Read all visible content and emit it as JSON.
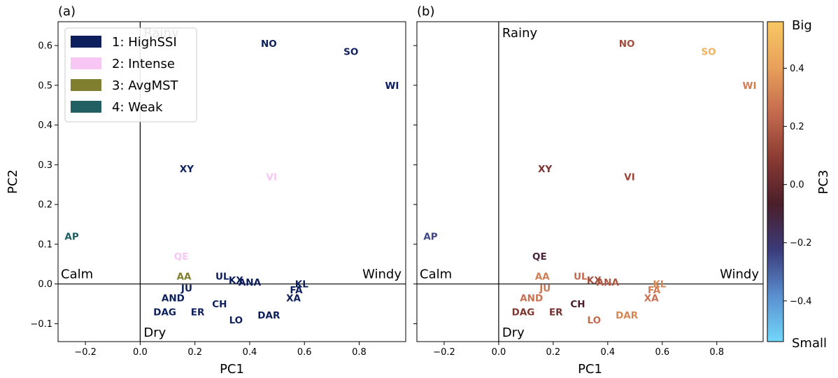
{
  "chart_data": [
    {
      "panel_label": "(a)",
      "type": "scatter",
      "xlabel": "PC1",
      "ylabel": "PC2",
      "xlim": [
        -0.3,
        0.97
      ],
      "ylim": [
        -0.145,
        0.66
      ],
      "xticks": [
        "-0.2",
        "0.0",
        "0.2",
        "0.4",
        "0.6",
        "0.8"
      ],
      "yticks": [
        "-0.1",
        "0.0",
        "0.1",
        "0.2",
        "0.3",
        "0.4",
        "0.5",
        "0.6"
      ],
      "quadrant_labels": {
        "top": "Rainy",
        "bottom": "Dry",
        "left": "Calm",
        "right": "Windy"
      },
      "legend": {
        "position": "top-left",
        "entries": [
          {
            "label": "1: HighSSI",
            "color": "#0d1f5c"
          },
          {
            "label": "2: Intense",
            "color": "#f7c6f5"
          },
          {
            "label": "3: AvgMST",
            "color": "#807f2f"
          },
          {
            "label": "4: Weak",
            "color": "#225f63"
          }
        ]
      },
      "points": [
        {
          "label": "NO",
          "x": 0.47,
          "y": 0.605,
          "cluster": 1
        },
        {
          "label": "SO",
          "x": 0.77,
          "y": 0.585,
          "cluster": 1
        },
        {
          "label": "WI",
          "x": 0.92,
          "y": 0.5,
          "cluster": 1
        },
        {
          "label": "XY",
          "x": 0.17,
          "y": 0.29,
          "cluster": 1
        },
        {
          "label": "VI",
          "x": 0.48,
          "y": 0.27,
          "cluster": 2
        },
        {
          "label": "AP",
          "x": -0.25,
          "y": 0.12,
          "cluster": 4
        },
        {
          "label": "QE",
          "x": 0.15,
          "y": 0.07,
          "cluster": 2
        },
        {
          "label": "AA",
          "x": 0.16,
          "y": 0.02,
          "cluster": 3
        },
        {
          "label": "UL",
          "x": 0.3,
          "y": 0.02,
          "cluster": 1
        },
        {
          "label": "KX",
          "x": 0.35,
          "y": 0.01,
          "cluster": 1
        },
        {
          "label": "ANA",
          "x": 0.4,
          "y": 0.005,
          "cluster": 1
        },
        {
          "label": "KL",
          "x": 0.59,
          "y": 0.0,
          "cluster": 1
        },
        {
          "label": "JU",
          "x": 0.17,
          "y": -0.01,
          "cluster": 1
        },
        {
          "label": "FA",
          "x": 0.57,
          "y": -0.015,
          "cluster": 1
        },
        {
          "label": "XA",
          "x": 0.56,
          "y": -0.035,
          "cluster": 1
        },
        {
          "label": "AND",
          "x": 0.12,
          "y": -0.035,
          "cluster": 1
        },
        {
          "label": "CH",
          "x": 0.29,
          "y": -0.05,
          "cluster": 1
        },
        {
          "label": "DAG",
          "x": 0.09,
          "y": -0.07,
          "cluster": 1
        },
        {
          "label": "ER",
          "x": 0.21,
          "y": -0.07,
          "cluster": 1
        },
        {
          "label": "DAR",
          "x": 0.47,
          "y": -0.078,
          "cluster": 1
        },
        {
          "label": "LO",
          "x": 0.35,
          "y": -0.09,
          "cluster": 1
        }
      ]
    },
    {
      "panel_label": "(b)",
      "type": "scatter",
      "xlabel": "PC1",
      "ylabel": "",
      "xlim": [
        -0.3,
        0.97
      ],
      "ylim": [
        -0.145,
        0.66
      ],
      "xticks": [
        "-0.2",
        "0.0",
        "0.2",
        "0.4",
        "0.6",
        "0.8"
      ],
      "quadrant_labels": {
        "top": "Rainy",
        "bottom": "Dry",
        "left": "Calm",
        "right": "Windy"
      },
      "colorbar": {
        "label": "PC3",
        "range": [
          -0.54,
          0.56
        ],
        "ticks": [
          "-0.4",
          "-0.2",
          "0.0",
          "0.2",
          "0.4"
        ],
        "top_label": "Big",
        "bottom_label": "Small",
        "colormap": [
          "#72d7f9",
          "#5a8fd0",
          "#3b3b7a",
          "#4a1e2a",
          "#8a3a32",
          "#c46a4e",
          "#e8a05a",
          "#f8c863"
        ]
      },
      "points": [
        {
          "label": "NO",
          "x": 0.47,
          "y": 0.605,
          "pc3": 0.15
        },
        {
          "label": "SO",
          "x": 0.77,
          "y": 0.585,
          "pc3": 0.47
        },
        {
          "label": "WI",
          "x": 0.92,
          "y": 0.5,
          "pc3": 0.3
        },
        {
          "label": "XY",
          "x": 0.17,
          "y": 0.29,
          "pc3": 0.05
        },
        {
          "label": "VI",
          "x": 0.48,
          "y": 0.27,
          "pc3": 0.13
        },
        {
          "label": "AP",
          "x": -0.25,
          "y": 0.12,
          "pc3": -0.25
        },
        {
          "label": "QE",
          "x": 0.15,
          "y": 0.07,
          "pc3": -0.1
        },
        {
          "label": "AA",
          "x": 0.16,
          "y": 0.02,
          "pc3": 0.3
        },
        {
          "label": "UL",
          "x": 0.3,
          "y": 0.02,
          "pc3": 0.25
        },
        {
          "label": "KX",
          "x": 0.35,
          "y": 0.01,
          "pc3": 0.15
        },
        {
          "label": "ANA",
          "x": 0.4,
          "y": 0.005,
          "pc3": 0.18
        },
        {
          "label": "KL",
          "x": 0.59,
          "y": 0.0,
          "pc3": 0.33
        },
        {
          "label": "JU",
          "x": 0.17,
          "y": -0.01,
          "pc3": 0.28
        },
        {
          "label": "FA",
          "x": 0.57,
          "y": -0.015,
          "pc3": 0.3
        },
        {
          "label": "XA",
          "x": 0.56,
          "y": -0.035,
          "pc3": 0.27
        },
        {
          "label": "AND",
          "x": 0.12,
          "y": -0.035,
          "pc3": 0.27
        },
        {
          "label": "CH",
          "x": 0.29,
          "y": -0.05,
          "pc3": -0.07
        },
        {
          "label": "DAG",
          "x": 0.09,
          "y": -0.07,
          "pc3": 0.07
        },
        {
          "label": "ER",
          "x": 0.21,
          "y": -0.07,
          "pc3": 0.03
        },
        {
          "label": "DAR",
          "x": 0.47,
          "y": -0.078,
          "pc3": 0.33
        },
        {
          "label": "LO",
          "x": 0.35,
          "y": -0.09,
          "pc3": 0.25
        }
      ]
    }
  ]
}
